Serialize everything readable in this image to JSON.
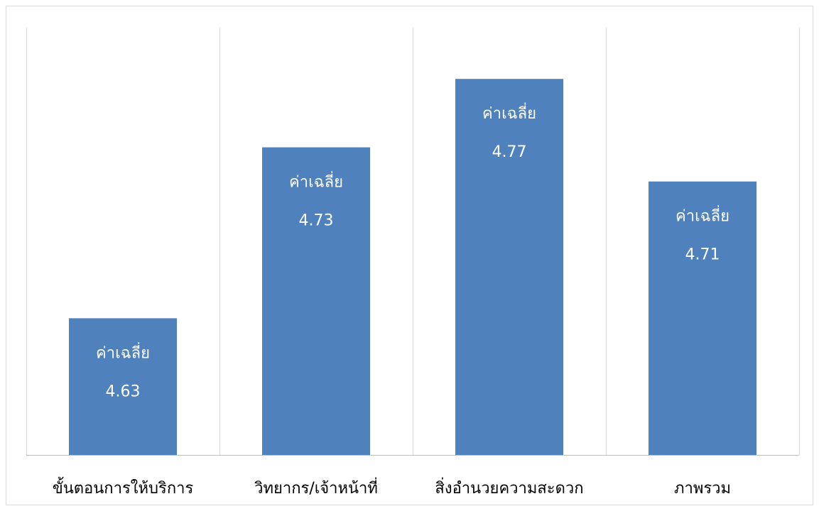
{
  "chart_data": {
    "type": "bar",
    "categories": [
      "ขั้นตอนการให้บริการ",
      "วิทยากร/เจ้าหน้าที่",
      "สิ่งอำนวยความสะดวก",
      "ภาพรวม"
    ],
    "values": [
      4.63,
      4.73,
      4.77,
      4.71
    ],
    "data_label_name": "ค่าเฉลี่ย",
    "title": "",
    "xlabel": "",
    "ylabel": "",
    "ylim": [
      4.55,
      4.8
    ],
    "grid": "vertical-category-separators",
    "legend": "none",
    "bar_color": "#4f81bd"
  }
}
